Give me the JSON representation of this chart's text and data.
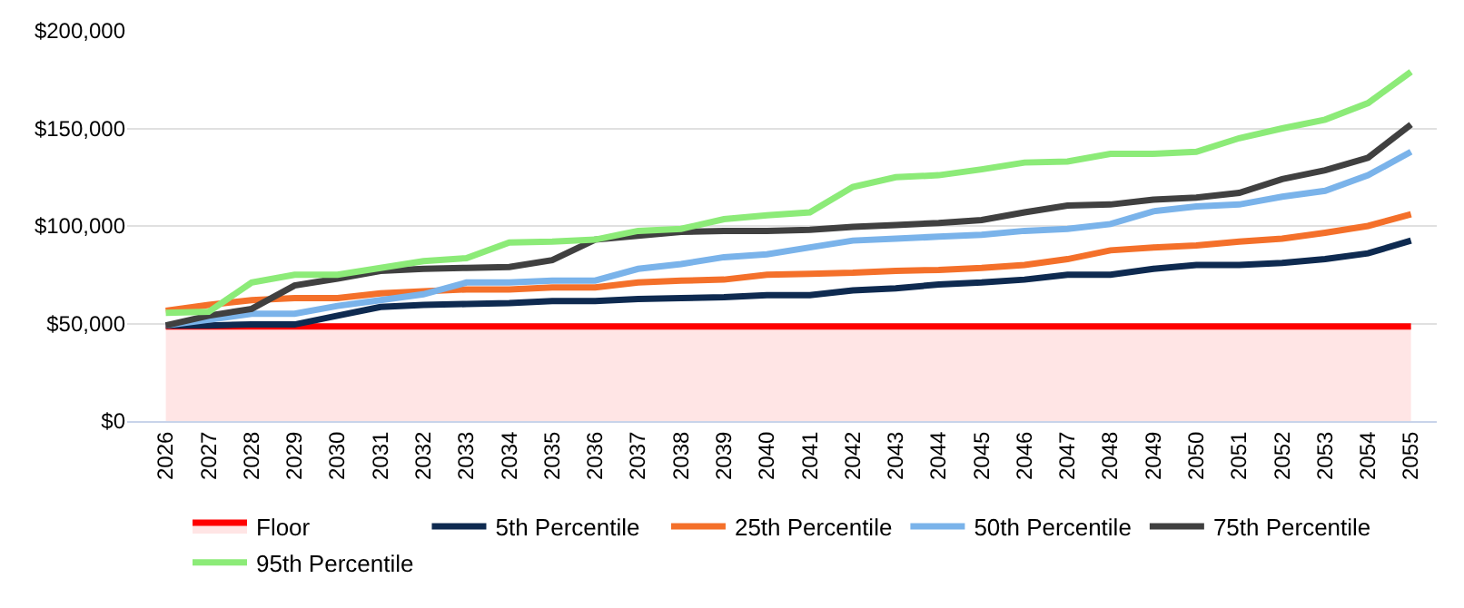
{
  "chart_data": {
    "type": "line",
    "categories": [
      "2026",
      "2027",
      "2028",
      "2029",
      "2030",
      "2031",
      "2032",
      "2033",
      "2034",
      "2035",
      "2036",
      "2037",
      "2038",
      "2039",
      "2040",
      "2041",
      "2042",
      "2043",
      "2044",
      "2045",
      "2046",
      "2047",
      "2048",
      "2049",
      "2050",
      "2051",
      "2052",
      "2053",
      "2054",
      "2055"
    ],
    "series": [
      {
        "name": "Floor",
        "type": "area",
        "color": "#ff0000",
        "values": [
          48500,
          48500,
          48500,
          48500,
          48500,
          48500,
          48500,
          48500,
          48500,
          48500,
          48500,
          48500,
          48500,
          48500,
          48500,
          48500,
          48500,
          48500,
          48500,
          48500,
          48500,
          48500,
          48500,
          48500,
          48500,
          48500,
          48500,
          48500,
          48500,
          48500
        ]
      },
      {
        "name": "5th Percentile",
        "color": "#0e2a50",
        "values": [
          49000,
          49000,
          49500,
          49500,
          54000,
          58500,
          59500,
          60000,
          60500,
          61500,
          61500,
          62500,
          63000,
          63500,
          64500,
          64500,
          67000,
          68000,
          70000,
          71000,
          72500,
          75000,
          75000,
          78000,
          80000,
          80000,
          81000,
          83000,
          86000,
          92500
        ]
      },
      {
        "name": "25th Percentile",
        "color": "#f4702a",
        "values": [
          56500,
          59500,
          62000,
          63000,
          63000,
          65500,
          66500,
          67500,
          67500,
          68500,
          68500,
          71000,
          72000,
          72500,
          75000,
          75500,
          76000,
          77000,
          77500,
          78500,
          80000,
          83000,
          87500,
          89000,
          90000,
          92000,
          93500,
          96500,
          100000,
          106000
        ]
      },
      {
        "name": "50th Percentile",
        "color": "#7ab3ea",
        "values": [
          49000,
          52000,
          55000,
          55000,
          59000,
          62000,
          65000,
          71000,
          71000,
          72000,
          72000,
          78000,
          80500,
          84000,
          85500,
          89000,
          92500,
          93500,
          94500,
          95500,
          97500,
          98500,
          101000,
          107500,
          110000,
          111000,
          115000,
          118000,
          126000,
          138000
        ]
      },
      {
        "name": "75th Percentile",
        "color": "#404040",
        "values": [
          49000,
          54000,
          57500,
          69500,
          73000,
          77000,
          78000,
          78500,
          79000,
          82500,
          93000,
          95000,
          97000,
          97500,
          97500,
          98000,
          99500,
          100500,
          101500,
          103000,
          107000,
          110500,
          111000,
          113500,
          114500,
          117000,
          124000,
          128500,
          135000,
          152000
        ]
      },
      {
        "name": "95th Percentile",
        "color": "#8ceb78",
        "values": [
          55500,
          56000,
          71000,
          75000,
          75000,
          78500,
          82000,
          83500,
          91500,
          92000,
          93000,
          97500,
          98500,
          103500,
          105500,
          107000,
          120000,
          125000,
          126000,
          129000,
          132500,
          133000,
          137000,
          137000,
          138000,
          145000,
          150000,
          154500,
          163000,
          179000
        ]
      }
    ],
    "ylim": [
      0,
      200000
    ],
    "yticks": [
      {
        "value": 0,
        "label": "$0"
      },
      {
        "value": 50000,
        "label": "$50,000"
      },
      {
        "value": 100000,
        "label": "$100,000"
      },
      {
        "value": 150000,
        "label": "$150,000"
      },
      {
        "value": 200000,
        "label": "$200,000"
      }
    ],
    "grid": "y",
    "legend": "bottom",
    "marker": "none",
    "line_style": "solid"
  }
}
